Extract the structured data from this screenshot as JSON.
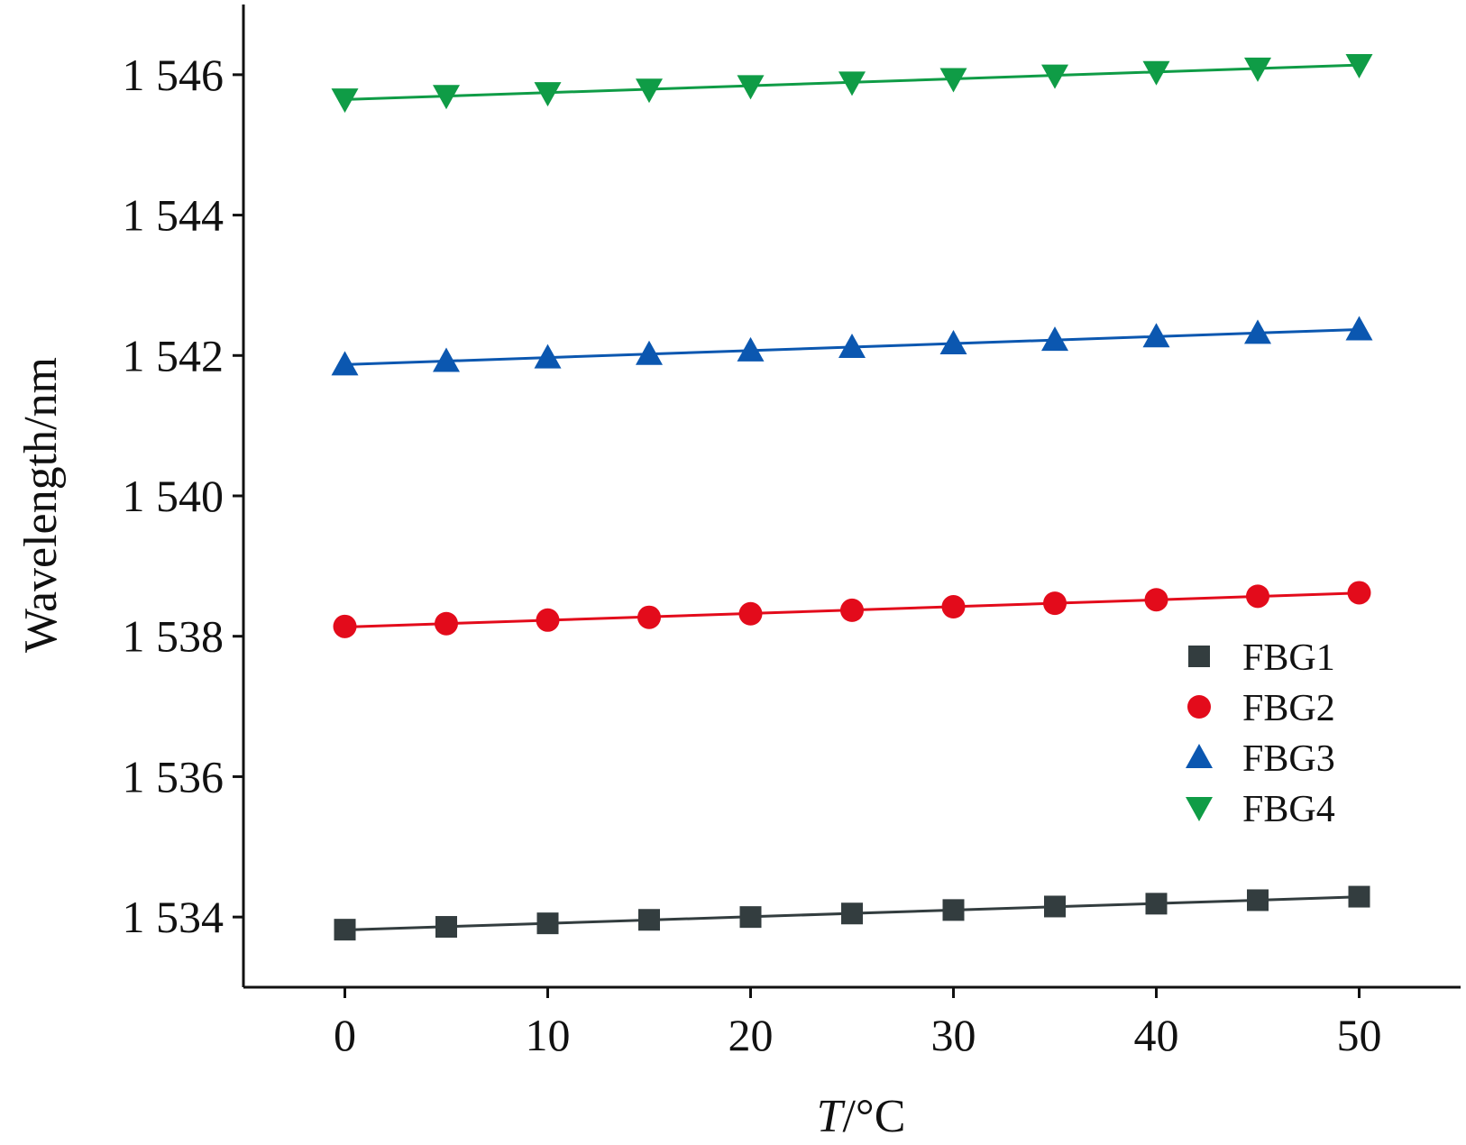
{
  "chart_data": {
    "type": "scatter",
    "title": "",
    "xlabel_italic": "T",
    "xlabel_unit": "/°C",
    "ylabel": "Wavelength/nm",
    "xlim": [
      -5,
      55
    ],
    "ylim": [
      1533,
      1547
    ],
    "x_ticks": [
      0,
      10,
      20,
      30,
      40,
      50
    ],
    "x_tick_labels": [
      "0",
      "10",
      "20",
      "30",
      "40",
      "50"
    ],
    "y_ticks": [
      1534,
      1536,
      1538,
      1540,
      1542,
      1544,
      1546
    ],
    "y_tick_labels": [
      "1 534",
      "1 536",
      "1 538",
      "1 540",
      "1 542",
      "1 544",
      "1 546"
    ],
    "grid": false,
    "legend_position": "right",
    "x": [
      0,
      5,
      10,
      15,
      20,
      25,
      30,
      35,
      40,
      45,
      50
    ],
    "series": [
      {
        "name": "FBG1",
        "marker": "square",
        "color": "#333d3f",
        "values": [
          1533.82,
          1533.86,
          1533.91,
          1533.96,
          1534.0,
          1534.05,
          1534.1,
          1534.15,
          1534.19,
          1534.24,
          1534.29
        ]
      },
      {
        "name": "FBG2",
        "marker": "circle",
        "color": "#e30b1b",
        "values": [
          1538.14,
          1538.18,
          1538.23,
          1538.27,
          1538.32,
          1538.37,
          1538.42,
          1538.47,
          1538.52,
          1538.57,
          1538.62
        ]
      },
      {
        "name": "FBG3",
        "marker": "triangle-up",
        "color": "#0b57b0",
        "values": [
          1541.87,
          1541.92,
          1541.97,
          1542.02,
          1542.07,
          1542.12,
          1542.17,
          1542.22,
          1542.27,
          1542.32,
          1542.37
        ]
      },
      {
        "name": "FBG4",
        "marker": "triangle-down",
        "color": "#0f9c46",
        "values": [
          1545.65,
          1545.7,
          1545.74,
          1545.79,
          1545.84,
          1545.89,
          1545.94,
          1545.99,
          1546.04,
          1546.09,
          1546.14
        ]
      }
    ]
  }
}
